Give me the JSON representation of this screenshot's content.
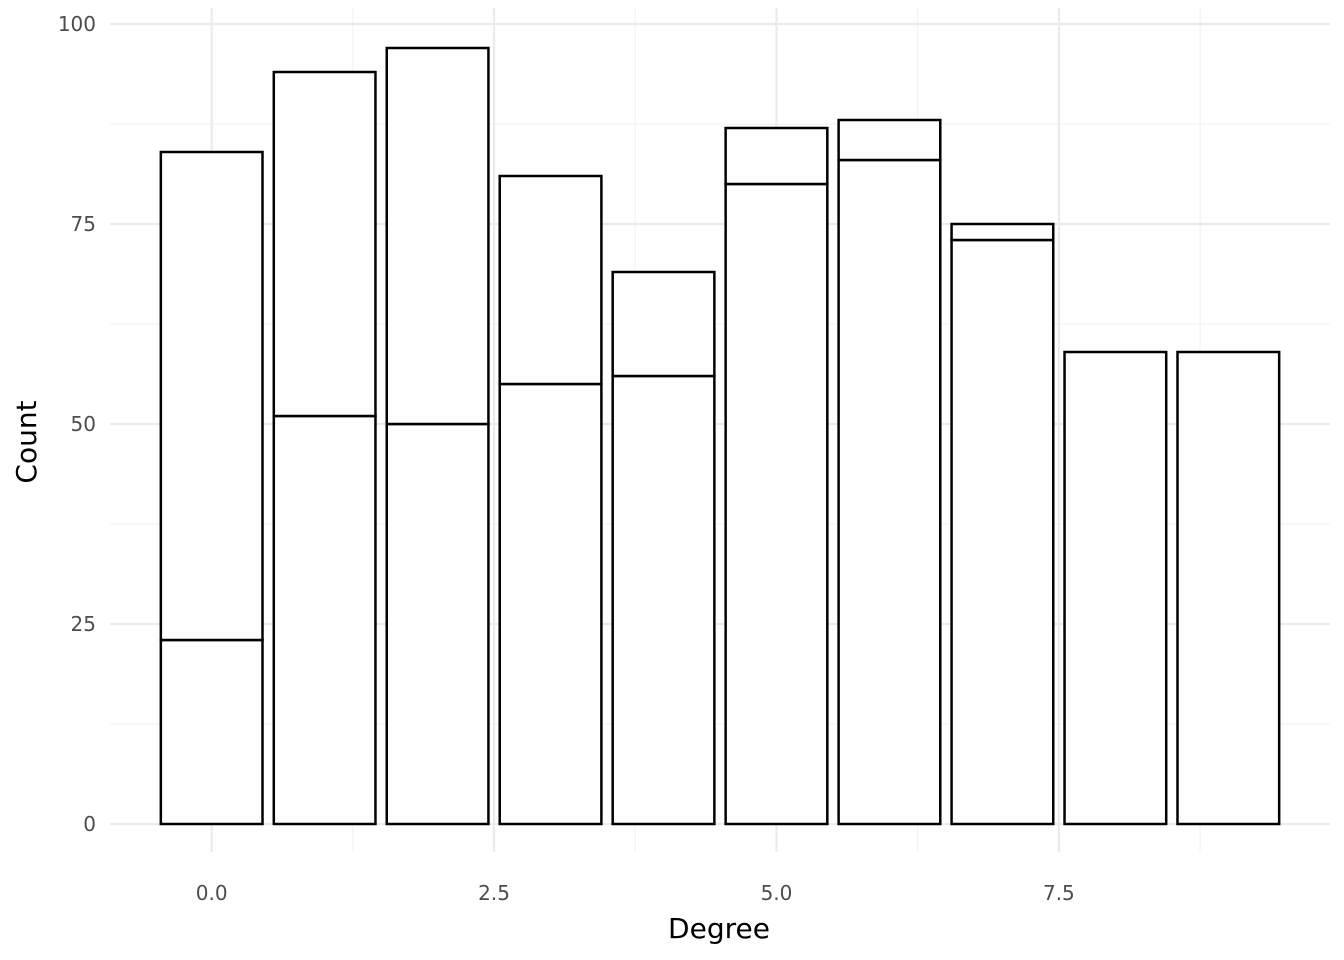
{
  "chart_data": {
    "type": "bar",
    "stacked": true,
    "xlabel": "Degree",
    "ylabel": "Count",
    "x_ticks": [
      "0.0",
      "2.5",
      "5.0",
      "7.5"
    ],
    "x_tick_values": [
      0,
      2.5,
      5,
      7.5
    ],
    "y_ticks": [
      "0",
      "25",
      "50",
      "75",
      "100"
    ],
    "y_tick_values": [
      0,
      25,
      50,
      75,
      100
    ],
    "xlim": [
      -0.9,
      9.9
    ],
    "ylim": [
      -3.5,
      102
    ],
    "x": [
      0,
      1,
      2,
      3,
      4,
      5,
      6,
      7,
      8,
      9
    ],
    "series": [
      {
        "values": [
          23,
          51,
          50,
          55,
          56,
          80,
          83,
          73,
          59,
          59
        ]
      },
      {
        "values": [
          61,
          43,
          47,
          26,
          13,
          7,
          5,
          2,
          0,
          0
        ]
      }
    ],
    "totals": [
      84,
      94,
      97,
      81,
      69,
      87,
      88,
      75,
      59,
      59
    ],
    "bar_width": 0.9,
    "fill_color": "#ffffff",
    "outline_color": "#000000",
    "grid": true,
    "legend": "none"
  }
}
